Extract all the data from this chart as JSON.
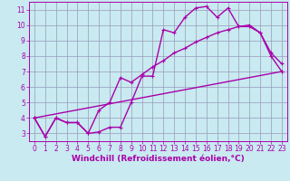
{
  "bg_color": "#c8eaf0",
  "line_color": "#aa00aa",
  "grid_color": "#9999bb",
  "xlabel": "Windchill (Refroidissement éolien,°C)",
  "xlim": [
    -0.5,
    23.5
  ],
  "ylim": [
    2.5,
    11.5
  ],
  "xticks": [
    0,
    1,
    2,
    3,
    4,
    5,
    6,
    7,
    8,
    9,
    10,
    11,
    12,
    13,
    14,
    15,
    16,
    17,
    18,
    19,
    20,
    21,
    22,
    23
  ],
  "yticks": [
    3,
    4,
    5,
    6,
    7,
    8,
    9,
    10,
    11
  ],
  "line1_x": [
    0,
    1,
    2,
    3,
    4,
    5,
    6,
    7,
    8,
    9,
    10,
    11,
    12,
    13,
    14,
    15,
    16,
    17,
    18,
    19,
    20,
    21,
    22,
    23
  ],
  "line1_y": [
    4.0,
    2.8,
    4.0,
    3.7,
    3.7,
    3.0,
    3.1,
    3.4,
    3.4,
    5.0,
    6.7,
    6.7,
    9.7,
    9.5,
    10.5,
    11.1,
    11.2,
    10.5,
    11.1,
    9.9,
    10.0,
    9.5,
    8.2,
    7.5
  ],
  "line2_x": [
    0,
    1,
    2,
    3,
    4,
    5,
    6,
    7,
    8,
    9,
    10,
    11,
    12,
    13,
    14,
    15,
    16,
    17,
    18,
    19,
    20,
    21,
    22,
    23
  ],
  "line2_y": [
    4.0,
    2.8,
    4.0,
    3.7,
    3.7,
    3.0,
    4.5,
    5.0,
    6.6,
    6.3,
    6.8,
    7.3,
    7.7,
    8.2,
    8.5,
    8.9,
    9.2,
    9.5,
    9.7,
    9.9,
    9.9,
    9.5,
    8.0,
    7.0
  ],
  "line3_x": [
    0,
    23
  ],
  "line3_y": [
    4.0,
    7.0
  ],
  "tick_fontsize": 5.5,
  "xlabel_fontsize": 6.5,
  "linewidth": 1.0,
  "markersize": 3.5
}
